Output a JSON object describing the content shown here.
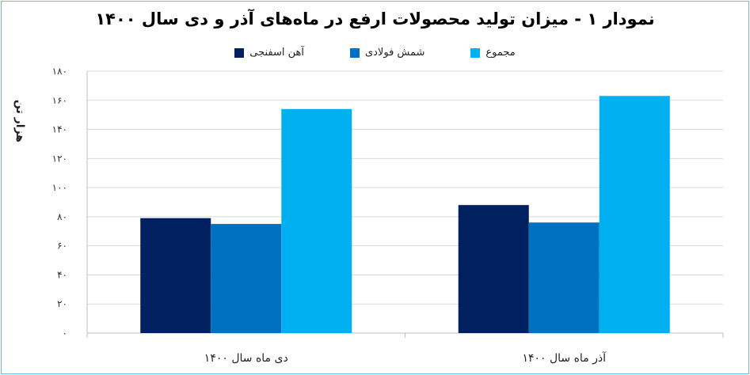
{
  "chart_data": {
    "type": "bar",
    "title": "نمودار ۱ - میزان تولید محصولات ارفع در ماه‌های آذر و دی سال ۱۴۰۰",
    "ylabel": "هزار تن",
    "xlabel": "",
    "categories": [
      "دی ماه سال ۱۴۰۰",
      "آذر ماه سال ۱۴۰۰"
    ],
    "series": [
      {
        "name": "آهن اسفنجی",
        "color": "#002060",
        "values": [
          79,
          88
        ]
      },
      {
        "name": "شمش فولادی",
        "color": "#0070c0",
        "values": [
          75,
          76
        ]
      },
      {
        "name": "مجموع",
        "color": "#00b0f0",
        "values": [
          154,
          163
        ]
      }
    ],
    "ylim": [
      0,
      180
    ],
    "yticks": [
      0,
      20,
      40,
      60,
      80,
      100,
      120,
      140,
      160,
      180
    ],
    "ytick_labels": [
      "۰",
      "۲۰",
      "۴۰",
      "۶۰",
      "۸۰",
      "۱۰۰",
      "۱۲۰",
      "۱۴۰",
      "۱۶۰",
      "۱۸۰"
    ],
    "grid": true,
    "legend_position": "top-center"
  }
}
